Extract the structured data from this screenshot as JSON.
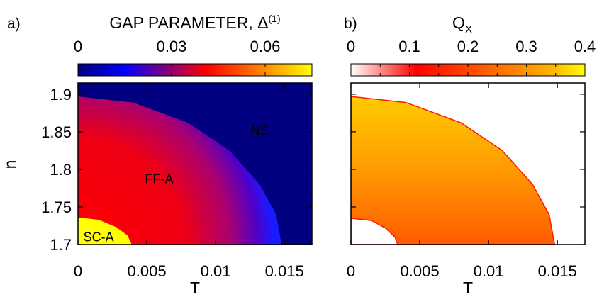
{
  "chart_data": [
    {
      "panel_label": "a)",
      "type": "heatmap",
      "title_text": "GAP PARAMETER, Δ",
      "title_superscript": "(1)",
      "xlabel": "T",
      "ylabel": "n",
      "xlim": [
        0,
        0.017
      ],
      "ylim": [
        1.7,
        1.915
      ],
      "x_ticks": [
        0,
        0.005,
        0.01,
        0.015
      ],
      "x_tick_labels": [
        "0",
        "0.005",
        "0.01",
        "0.015"
      ],
      "y_ticks": [
        1.7,
        1.75,
        1.8,
        1.85,
        1.9
      ],
      "y_tick_labels": [
        "1.7",
        "1.75",
        "1.8",
        "1.85",
        "1.9"
      ],
      "colorbar": {
        "range": [
          0,
          0.075
        ],
        "ticks": [
          0,
          0.03,
          0.06
        ],
        "tick_labels": [
          "0",
          "0.03",
          "0.06"
        ],
        "colors": [
          "#000080",
          "#0000ff",
          "#ff0000",
          "#ffa500",
          "#ffff00"
        ]
      },
      "region_labels": [
        {
          "text": "NS",
          "T": 0.0132,
          "n": 1.852,
          "color": "#ffffff"
        },
        {
          "text": "FF-A",
          "T": 0.0059,
          "n": 1.787,
          "color": "#000000"
        },
        {
          "text": "SC-A",
          "T": 0.0015,
          "n": 1.71,
          "color": "#000000"
        }
      ],
      "regions": {
        "ff_boundary": [
          [
            0,
            1.897
          ],
          [
            0.004,
            1.889
          ],
          [
            0.008,
            1.862
          ],
          [
            0.011,
            1.825
          ],
          [
            0.0132,
            1.78
          ],
          [
            0.0144,
            1.74
          ],
          [
            0.0148,
            1.7
          ]
        ],
        "sc_boundary": [
          [
            0,
            1.736
          ],
          [
            0.0015,
            1.733
          ],
          [
            0.0028,
            1.723
          ],
          [
            0.0036,
            1.712
          ],
          [
            0.0039,
            1.7
          ]
        ],
        "gap_ff_max": 0.055,
        "gap_sc": 0.075
      }
    },
    {
      "panel_label": "b)",
      "type": "heatmap",
      "title_text": "Q",
      "title_subscript": "X",
      "xlabel": "T",
      "ylabel": "",
      "xlim": [
        0,
        0.017
      ],
      "ylim": [
        1.7,
        1.915
      ],
      "x_ticks": [
        0,
        0.005,
        0.01,
        0.015
      ],
      "x_tick_labels": [
        "0",
        "0.005",
        "0.01",
        "0.015"
      ],
      "y_ticks": [
        1.7,
        1.75,
        1.8,
        1.85,
        1.9
      ],
      "colorbar": {
        "range": [
          0,
          0.4
        ],
        "ticks": [
          0,
          0.1,
          0.2,
          0.3,
          0.4
        ],
        "tick_labels": [
          "0",
          "0.1",
          "0.2",
          "0.3",
          "0.4"
        ],
        "colors": [
          "#ffffff",
          "#ff0000",
          "#ffa500",
          "#ffd700",
          "#ffff00"
        ]
      },
      "regions": {
        "ff_boundary": [
          [
            0,
            1.897
          ],
          [
            0.004,
            1.889
          ],
          [
            0.008,
            1.862
          ],
          [
            0.011,
            1.825
          ],
          [
            0.0132,
            1.78
          ],
          [
            0.0144,
            1.74
          ],
          [
            0.0148,
            1.7
          ]
        ],
        "sc_boundary": [
          [
            0,
            1.735
          ],
          [
            0.0015,
            1.732
          ],
          [
            0.0025,
            1.722
          ],
          [
            0.0032,
            1.71
          ],
          [
            0.0034,
            1.7
          ]
        ],
        "q_top": 0.34,
        "q_bottom": 0.26
      }
    }
  ]
}
